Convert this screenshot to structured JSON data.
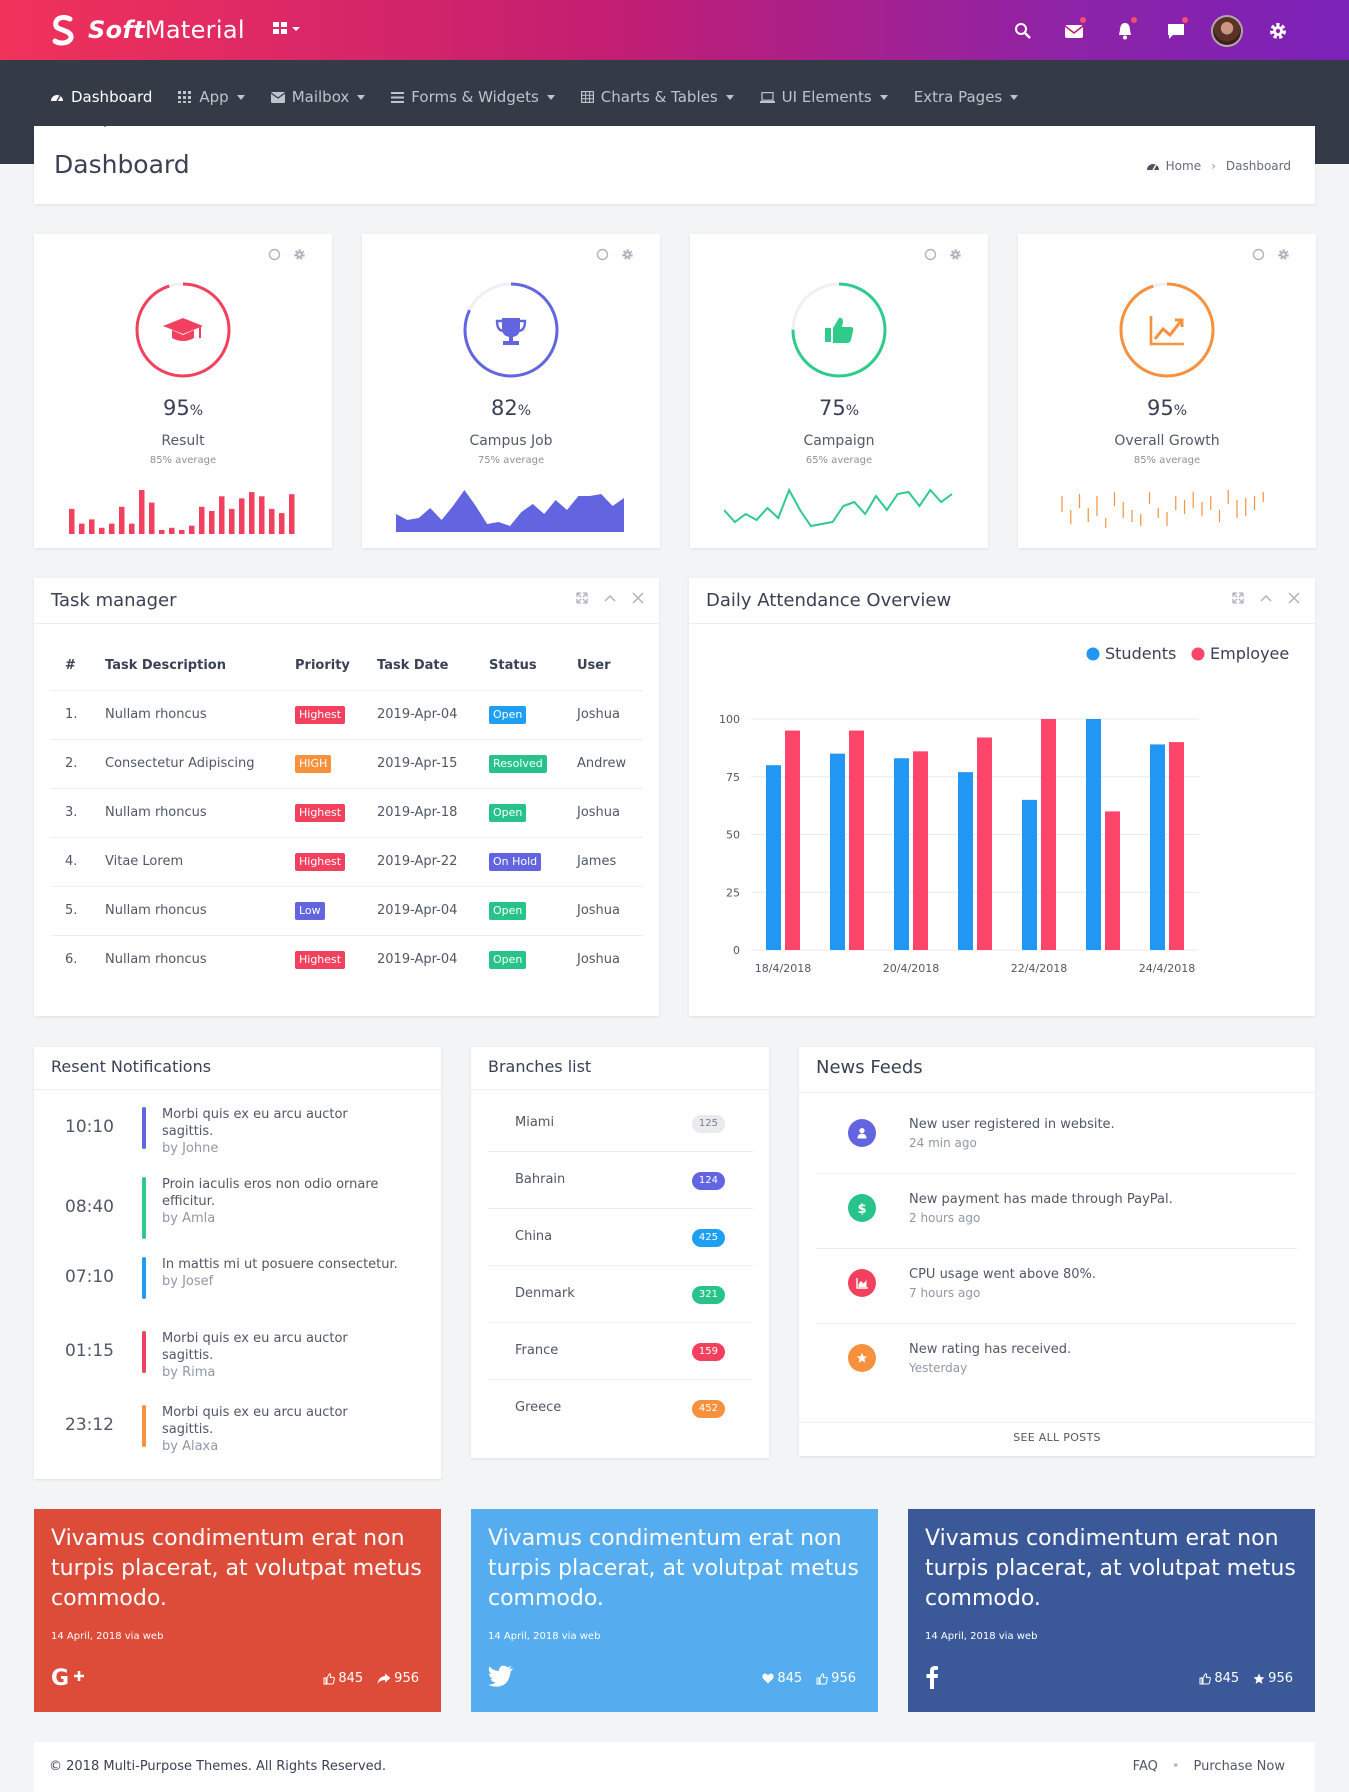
{
  "brand": {
    "name_bold": "Soft",
    "name_rest": "Material"
  },
  "nav": [
    {
      "label": "Dashboard",
      "icon": "dashboard-icon"
    },
    {
      "label": "App",
      "icon": "apps-icon"
    },
    {
      "label": "Mailbox",
      "icon": "mail-icon"
    },
    {
      "label": "Forms & Widgets",
      "icon": "list-icon"
    },
    {
      "label": "Charts & Tables",
      "icon": "table-icon"
    },
    {
      "label": "UI Elements",
      "icon": "laptop-icon"
    },
    {
      "label": "Extra Pages",
      "icon": ""
    }
  ],
  "page": {
    "title": "Dashboard",
    "breadcrumb_home": "Home",
    "breadcrumb_current": "Dashboard"
  },
  "stats": [
    {
      "value": "95",
      "unit": "%",
      "label": "Result",
      "sub": "85% average",
      "color": "#f2405f",
      "percent": 0.95,
      "icon": "graduation-cap-icon"
    },
    {
      "value": "82",
      "unit": "%",
      "label": "Campus Job",
      "sub": "75% average",
      "color": "#6365e0",
      "percent": 0.82,
      "icon": "trophy-icon"
    },
    {
      "value": "75",
      "unit": "%",
      "label": "Campaign",
      "sub": "65% average",
      "color": "#2ecb8b",
      "percent": 0.75,
      "icon": "thumbs-up-icon"
    },
    {
      "value": "95",
      "unit": "%",
      "label": "Overall Growth",
      "sub": "85% average",
      "color": "#f7913d",
      "percent": 0.95,
      "icon": "line-chart-icon"
    }
  ],
  "tasks": {
    "title": "Task manager",
    "headers": [
      "#",
      "Task Description",
      "Priority",
      "Task Date",
      "Status",
      "User"
    ],
    "rows": [
      {
        "num": "1.",
        "desc": "Nullam rhoncus",
        "priority": "Highest",
        "pcolor": "#f2405f",
        "date": "2019-Apr-04",
        "status": "Open",
        "scolor": "#1e9ff2",
        "user": "Joshua"
      },
      {
        "num": "2.",
        "desc": "Consectetur Adipiscing",
        "priority": "HIGH",
        "pcolor": "#f7913d",
        "date": "2019-Apr-15",
        "status": "Resolved",
        "scolor": "#28c38a",
        "user": "Andrew"
      },
      {
        "num": "3.",
        "desc": "Nullam rhoncus",
        "priority": "Highest",
        "pcolor": "#f2405f",
        "date": "2019-Apr-18",
        "status": "Open",
        "scolor": "#28c38a",
        "user": "Joshua"
      },
      {
        "num": "4.",
        "desc": "Vitae Lorem",
        "priority": "Highest",
        "pcolor": "#f2405f",
        "date": "2019-Apr-22",
        "status": "On Hold",
        "scolor": "#6365e0",
        "user": "James"
      },
      {
        "num": "5.",
        "desc": "Nullam rhoncus",
        "priority": "Low",
        "pcolor": "#6365e0",
        "date": "2019-Apr-04",
        "status": "Open",
        "scolor": "#28c38a",
        "user": "Joshua"
      },
      {
        "num": "6.",
        "desc": "Nullam rhoncus",
        "priority": "Highest",
        "pcolor": "#f2405f",
        "date": "2019-Apr-04",
        "status": "Open",
        "scolor": "#28c38a",
        "user": "Joshua"
      }
    ]
  },
  "attendance": {
    "title": "Daily Attendance Overview"
  },
  "chart_data": {
    "type": "bar",
    "categories": [
      "18/4/2018",
      "",
      "20/4/2018",
      "",
      "22/4/2018",
      "",
      "24/4/2018"
    ],
    "series": [
      {
        "name": "Students",
        "color": "#2196f3",
        "values": [
          80,
          85,
          83,
          77,
          65,
          100,
          89
        ]
      },
      {
        "name": "Employee",
        "color": "#ff4569",
        "values": [
          95,
          95,
          86,
          92,
          100,
          60,
          90
        ]
      }
    ],
    "yticks": [
      0,
      25,
      50,
      75,
      100
    ],
    "ylim": [
      0,
      100
    ],
    "legend": "top-right",
    "grid": true
  },
  "notifications": {
    "title": "Resent Notifications",
    "items": [
      {
        "time": "10:10",
        "text": "Morbi quis ex eu arcu auctor sagittis.",
        "by": "by Johne",
        "color": "#6365e0"
      },
      {
        "time": "08:40",
        "text": "Proin iaculis eros non odio ornare efficitur.",
        "by": "by Amla",
        "color": "#2ecb8b"
      },
      {
        "time": "07:10",
        "text": "In mattis mi ut posuere consectetur.",
        "by": "by Josef",
        "color": "#1e9ff2"
      },
      {
        "time": "01:15",
        "text": "Morbi quis ex eu arcu auctor sagittis.",
        "by": "by Rima",
        "color": "#f2405f"
      },
      {
        "time": "23:12",
        "text": "Morbi quis ex eu arcu auctor sagittis.",
        "by": "by Alaxa",
        "color": "#f7913d"
      }
    ]
  },
  "branches": {
    "title": "Branches list",
    "items": [
      {
        "name": "Miami",
        "count": "125",
        "color": "#e9ebee",
        "text": "#7a808c"
      },
      {
        "name": "Bahrain",
        "count": "124",
        "color": "#6365e0",
        "text": "#fff"
      },
      {
        "name": "China",
        "count": "425",
        "color": "#1e9ff2",
        "text": "#fff"
      },
      {
        "name": "Denmark",
        "count": "321",
        "color": "#28c38a",
        "text": "#fff"
      },
      {
        "name": "France",
        "count": "159",
        "color": "#f2405f",
        "text": "#fff"
      },
      {
        "name": "Greece",
        "count": "452",
        "color": "#f7913d",
        "text": "#fff"
      }
    ]
  },
  "news": {
    "title": "News Feeds",
    "see_all": "SEE ALL POSTS",
    "items": [
      {
        "text": "New user registered in website.",
        "time": "24 min ago",
        "color": "#6365e0",
        "icon": "user-icon"
      },
      {
        "text": "New payment has made through PayPal.",
        "time": "2 hours ago",
        "color": "#28c38a",
        "icon": "dollar-icon"
      },
      {
        "text": "CPU usage went above 80%.",
        "time": "7 hours ago",
        "color": "#f2405f",
        "icon": "area-chart-icon"
      },
      {
        "text": "New rating has received.",
        "time": "Yesterday",
        "color": "#f7913d",
        "icon": "star-icon"
      }
    ]
  },
  "social": [
    {
      "quote": "Vivamus condimentum erat non turpis placerat, at volutpat metus commodo.",
      "date": "14 April, 2018 via web",
      "network": "google-plus-icon",
      "color": "#dd4b39",
      "s1": "845",
      "s1icon": "thumbs-up-icon",
      "s2": "956",
      "s2icon": "share-icon"
    },
    {
      "quote": "Vivamus condimentum erat non turpis placerat, at volutpat metus commodo.",
      "date": "14 April, 2018 via web",
      "network": "twitter-icon",
      "color": "#55acee",
      "s1": "845",
      "s1icon": "heart-icon",
      "s2": "956",
      "s2icon": "thumbs-up-icon"
    },
    {
      "quote": "Vivamus condimentum erat non turpis placerat, at volutpat metus commodo.",
      "date": "14 April, 2018 via web",
      "network": "facebook-icon",
      "color": "#3b5998",
      "s1": "845",
      "s1icon": "thumbs-up-icon",
      "s2": "956",
      "s2icon": "star-icon"
    }
  ],
  "footer": {
    "copyright": "© 2018 Multi-Purpose Themes. All Rights Reserved.",
    "faq": "FAQ",
    "purchase": "Purchase Now"
  }
}
